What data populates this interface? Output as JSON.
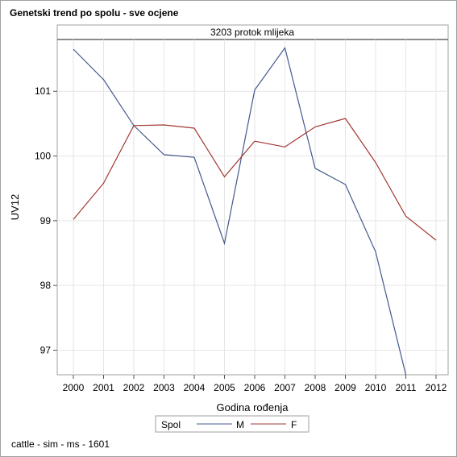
{
  "chart_data": {
    "type": "line",
    "title": "Genetski trend po spolu - sve ocjene",
    "panel_label": "3203 protok mlijeka",
    "xlabel": "Godina rođenja",
    "ylabel": "UV12",
    "x": [
      "2000",
      "2001",
      "2002",
      "2003",
      "2004",
      "2005",
      "2006",
      "2007",
      "2008",
      "2009",
      "2010",
      "2011",
      "2012"
    ],
    "yticks": [
      97,
      98,
      99,
      100,
      101
    ],
    "ylim": [
      96.62,
      10.8
    ],
    "grid": true,
    "legend": {
      "title": "Spol",
      "position": "bottom"
    },
    "series": [
      {
        "name": "M",
        "color": "#44588c",
        "values": [
          101.65,
          101.18,
          100.47,
          100.02,
          99.98,
          98.65,
          101.02,
          101.67,
          99.81,
          99.56,
          98.52,
          96.62,
          null
        ]
      },
      {
        "name": "F",
        "color": "#a23a32",
        "values": [
          99.02,
          99.58,
          100.47,
          100.48,
          100.43,
          99.68,
          100.23,
          100.14,
          100.45,
          100.58,
          99.9,
          99.07,
          98.7
        ]
      }
    ]
  },
  "footnote": "cattle - sim - ms - 1601"
}
